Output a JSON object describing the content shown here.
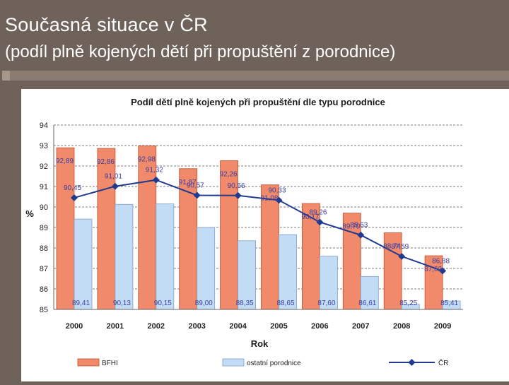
{
  "slide": {
    "title": "Současná situace v ČR",
    "subtitle": "(podíl plně kojených dětí při propuštění z porodnice)"
  },
  "colors": {
    "background": "#6f625a",
    "bfhi": "#f08a6a",
    "ostatni": "#c2dcf5",
    "line": "#1f3a8f",
    "label": "#3a3fa0"
  },
  "chart_data": {
    "type": "bar",
    "title": "Podíl dětí plně kojených při propuštění dle typu porodnice",
    "xlabel": "Rok",
    "ylabel": "%",
    "ylim": [
      85,
      94
    ],
    "yticks": [
      "85",
      "86",
      "87",
      "88",
      "89",
      "90",
      "91",
      "92",
      "93",
      "94"
    ],
    "grid": true,
    "legend_position": "bottom",
    "categories": [
      "2000",
      "2001",
      "2002",
      "2003",
      "2004",
      "2005",
      "2006",
      "2007",
      "2008",
      "2009"
    ],
    "series": [
      {
        "name": "BFHI",
        "kind": "bar",
        "values": [
          92.89,
          92.86,
          92.98,
          91.87,
          92.26,
          91.08,
          90.17,
          89.7,
          88.74,
          87.62
        ],
        "labels": [
          "92,89",
          "92,86",
          "92,98",
          "91,87",
          "92,26",
          "91,08",
          "90,17",
          "89,70",
          "88,74",
          "87,62"
        ]
      },
      {
        "name": "ostatní porodnice",
        "kind": "bar",
        "values": [
          89.41,
          90.13,
          90.15,
          89.0,
          88.35,
          88.65,
          87.6,
          86.61,
          85.25,
          85.41
        ],
        "labels": [
          "89,41",
          "90,13",
          "90,15",
          "89,00",
          "88,35",
          "88,65",
          "87,60",
          "86,61",
          "85,25",
          "85,41"
        ]
      },
      {
        "name": "ČR",
        "kind": "line",
        "values": [
          90.45,
          91.01,
          91.32,
          90.57,
          90.56,
          90.33,
          89.26,
          88.63,
          87.59,
          86.88
        ],
        "labels": [
          "90,45",
          "91,01",
          "91,32",
          "90,57",
          "90,56",
          "90,33",
          "89,26",
          "88,63",
          "87,59",
          "86,88"
        ]
      }
    ]
  }
}
